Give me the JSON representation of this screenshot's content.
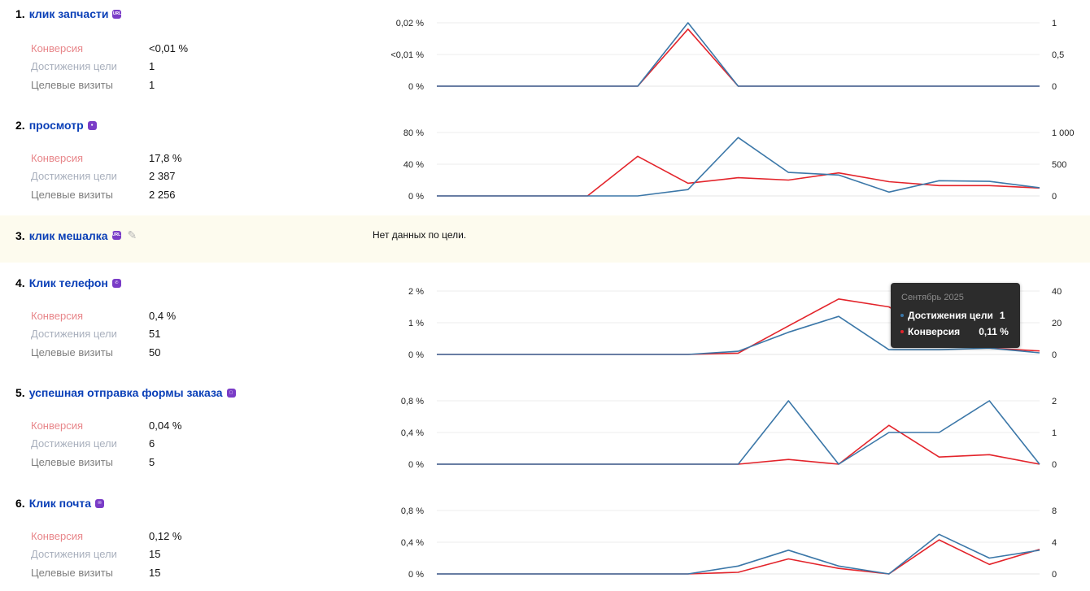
{
  "labels": {
    "conversion": "Конверсия",
    "achievements": "Достижения цели",
    "visits": "Целевые визиты"
  },
  "colors": {
    "achievements": "#3b77a8",
    "conversion": "#e3242b",
    "title": "#0a3fb7",
    "goal_icon": "#7a3cc7"
  },
  "goals": [
    {
      "num": "1.",
      "name": "клик запчасти",
      "icon": "url-icon",
      "conversion": "<0,01 %",
      "achievements": "1",
      "visits": "1"
    },
    {
      "num": "2.",
      "name": "просмотр",
      "icon": "eye-icon",
      "conversion": "17,8 %",
      "achievements": "2 387",
      "visits": "2 256"
    },
    {
      "num": "3.",
      "name": "клик мешалка",
      "icon": "url-icon",
      "no_data": "Нет данных по цели."
    },
    {
      "num": "4.",
      "name": "Клик телефон",
      "icon": "phone-icon",
      "conversion": "0,4 %",
      "achievements": "51",
      "visits": "50"
    },
    {
      "num": "5.",
      "name": "успешная отправка формы заказа",
      "icon": "form-icon",
      "conversion": "0,04 %",
      "achievements": "6",
      "visits": "5"
    },
    {
      "num": "6.",
      "name": "Клик почта",
      "icon": "mail-icon",
      "conversion": "0,12 %",
      "achievements": "15",
      "visits": "15"
    }
  ],
  "tooltip": {
    "title": "Сентябрь 2025",
    "achievements_label": "Достижения цели",
    "achievements_value": "1",
    "conversion_label": "Конверсия",
    "conversion_value": "0,11 %"
  },
  "chart_data": [
    {
      "type": "line",
      "goal": "клик запчасти",
      "left_ticks": [
        "0,02 %",
        "<0,01 %",
        "0 %"
      ],
      "right_ticks": [
        "1",
        "0,5",
        "0"
      ],
      "left_max": 0.02,
      "right_max": 1,
      "series": [
        {
          "name": "Достижения цели",
          "axis": "right",
          "values": [
            0,
            0,
            0,
            0,
            0,
            1,
            0,
            0,
            0,
            0,
            0,
            0,
            0
          ]
        },
        {
          "name": "Конверсия",
          "axis": "left",
          "values": [
            0,
            0,
            0,
            0,
            0,
            0.018,
            0,
            0,
            0,
            0,
            0,
            0,
            0
          ]
        }
      ]
    },
    {
      "type": "line",
      "goal": "просмотр",
      "left_ticks": [
        "80 %",
        "40 %",
        "0 %"
      ],
      "right_ticks": [
        "1 000",
        "500",
        "0"
      ],
      "left_max": 80,
      "right_max": 1000,
      "series": [
        {
          "name": "Достижения цели",
          "axis": "right",
          "values": [
            0,
            0,
            0,
            0,
            0,
            100,
            920,
            370,
            330,
            60,
            240,
            230,
            130
          ]
        },
        {
          "name": "Конверсия",
          "axis": "left",
          "values": [
            0,
            0,
            0,
            0,
            50,
            16,
            23,
            20,
            29,
            18,
            13,
            13,
            10
          ]
        }
      ]
    },
    {
      "type": "line",
      "goal": "Клик телефон",
      "left_ticks": [
        "2 %",
        "1 %",
        "0 %"
      ],
      "right_ticks": [
        "40",
        "20",
        "0"
      ],
      "left_max": 2,
      "right_max": 40,
      "series": [
        {
          "name": "Достижения цели",
          "axis": "right",
          "values": [
            0,
            0,
            0,
            0,
            0,
            0,
            2,
            14,
            24,
            3,
            3,
            4,
            1
          ]
        },
        {
          "name": "Конверсия",
          "axis": "left",
          "values": [
            0,
            0,
            0,
            0,
            0,
            0,
            0.04,
            0.9,
            1.75,
            1.5,
            0.6,
            0.2,
            0.11
          ]
        }
      ]
    },
    {
      "type": "line",
      "goal": "успешная отправка формы заказа",
      "left_ticks": [
        "0,8 %",
        "0,4 %",
        "0 %"
      ],
      "right_ticks": [
        "2",
        "1",
        "0"
      ],
      "left_max": 0.8,
      "right_max": 2,
      "series": [
        {
          "name": "Достижения цели",
          "axis": "right",
          "values": [
            0,
            0,
            0,
            0,
            0,
            0,
            0,
            2,
            0,
            1,
            1,
            2,
            0
          ]
        },
        {
          "name": "Конверсия",
          "axis": "left",
          "values": [
            0,
            0,
            0,
            0,
            0,
            0,
            0,
            0.06,
            0,
            0.49,
            0.09,
            0.12,
            0
          ]
        }
      ]
    },
    {
      "type": "line",
      "goal": "Клик почта",
      "left_ticks": [
        "0,8 %",
        "0,4 %",
        "0 %"
      ],
      "right_ticks": [
        "8",
        "4",
        "0"
      ],
      "left_max": 0.8,
      "right_max": 8,
      "series": [
        {
          "name": "Достижения цели",
          "axis": "right",
          "values": [
            0,
            0,
            0,
            0,
            0,
            0,
            1,
            3,
            1,
            0,
            5,
            2,
            3
          ]
        },
        {
          "name": "Конверсия",
          "axis": "left",
          "values": [
            0,
            0,
            0,
            0,
            0,
            0,
            0.02,
            0.19,
            0.07,
            0,
            0.43,
            0.12,
            0.31
          ]
        }
      ]
    }
  ]
}
